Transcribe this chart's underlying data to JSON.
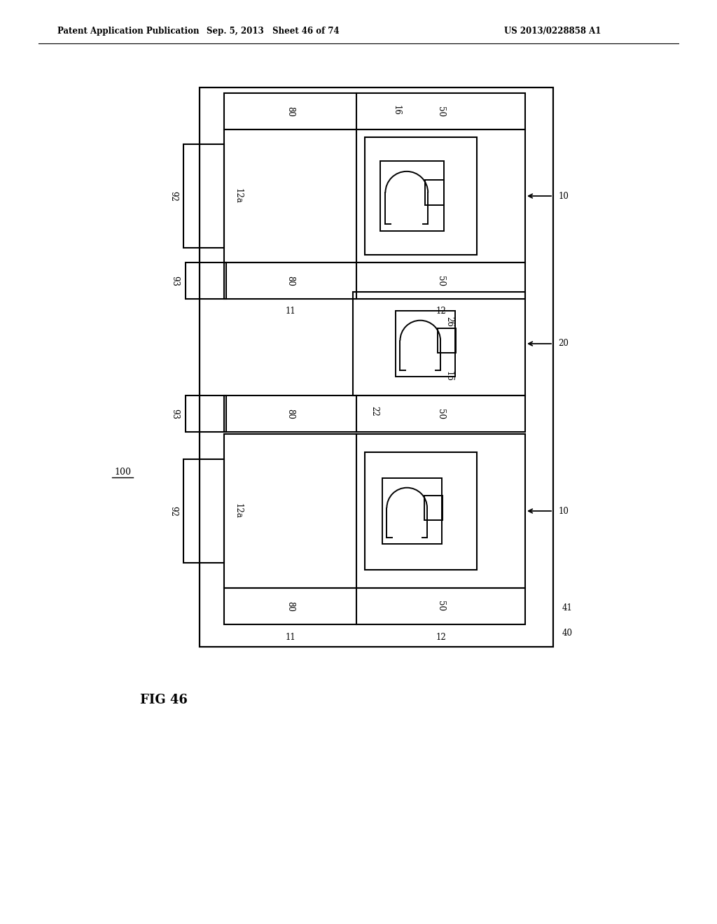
{
  "header_left": "Patent Application Publication",
  "header_center": "Sep. 5, 2013   Sheet 46 of 74",
  "header_right": "US 2013/0228858 A1",
  "bg_color": "#ffffff",
  "line_color": "#000000",
  "fig_label": "FIG 46",
  "ref_100": "100"
}
